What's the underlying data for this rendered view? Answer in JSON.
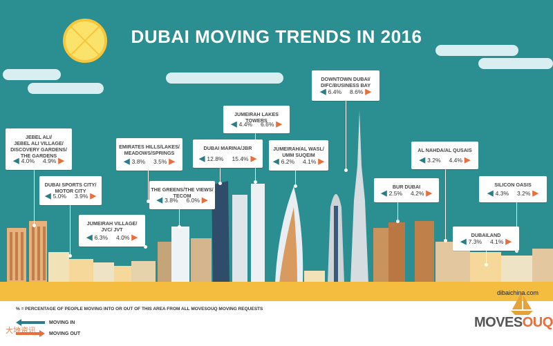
{
  "title": "DUBAI MOVING TRENDS IN 2016",
  "colors": {
    "background": "#2b8e91",
    "moving_in": "#2a7c86",
    "moving_out": "#e86f3c",
    "ground": "#f5bd3f"
  },
  "areas": [
    {
      "name": "JEBEL ALI/\nJEBEL ALI VILLAGE/\nDISCOVERY GARDENS/\nTHE GARDENS",
      "in": "4.0%",
      "out": "4.9%"
    },
    {
      "name": "DUBAI SPORTS CITY/\nMOTOR CITY",
      "in": "5.0%",
      "out": "3.9%"
    },
    {
      "name": "JUMEIRAH VILLAGE/\nJVC/ JVT",
      "in": "6.3%",
      "out": "4.0%"
    },
    {
      "name": "EMIRATES HILLS/LAKES/\nMEADOWS/SPRINGS",
      "in": "3.8%",
      "out": "3.5%"
    },
    {
      "name": "THE GREENS/THE VIEWS/\nTECOM",
      "in": "3.8%",
      "out": "6.0%"
    },
    {
      "name": "DUBAI MARINA/JBR",
      "in": "12.8%",
      "out": "15.4%"
    },
    {
      "name": "JUMEIRAH LAKES TOWERS",
      "in": "4.4%",
      "out": "6.6%"
    },
    {
      "name": "JUMEIRAH/AL WASL/\nUMM SUQEIM",
      "in": "6.2%",
      "out": "4.1%"
    },
    {
      "name": "DOWNTOWN DUBAI/\nDIFC/BUSINESS BAY",
      "in": "6.4%",
      "out": "8.6%"
    },
    {
      "name": "BUR DUBAI",
      "in": "2.5%",
      "out": "4.2%"
    },
    {
      "name": "AL NAHDA/AL QUSAIS",
      "in": "3.2%",
      "out": "4.4%"
    },
    {
      "name": "SILICON OASIS",
      "in": "4.3%",
      "out": "3.2%"
    },
    {
      "name": "DUBAILAND",
      "in": "7.3%",
      "out": "4.1%"
    }
  ],
  "footnote": "% = PERCENTAGE OF PEOPLE MOVING INTO OR OUT OF THIS AREA FROM ALL MOVESOUQ MOVING REQUESTS",
  "legend": {
    "in": "MOVING IN",
    "out": "MOVING OUT"
  },
  "brand": {
    "a": "MOVES",
    "b": "OUQ"
  },
  "watermark": "大地资讯",
  "watermark2": "dibaichina.com"
}
